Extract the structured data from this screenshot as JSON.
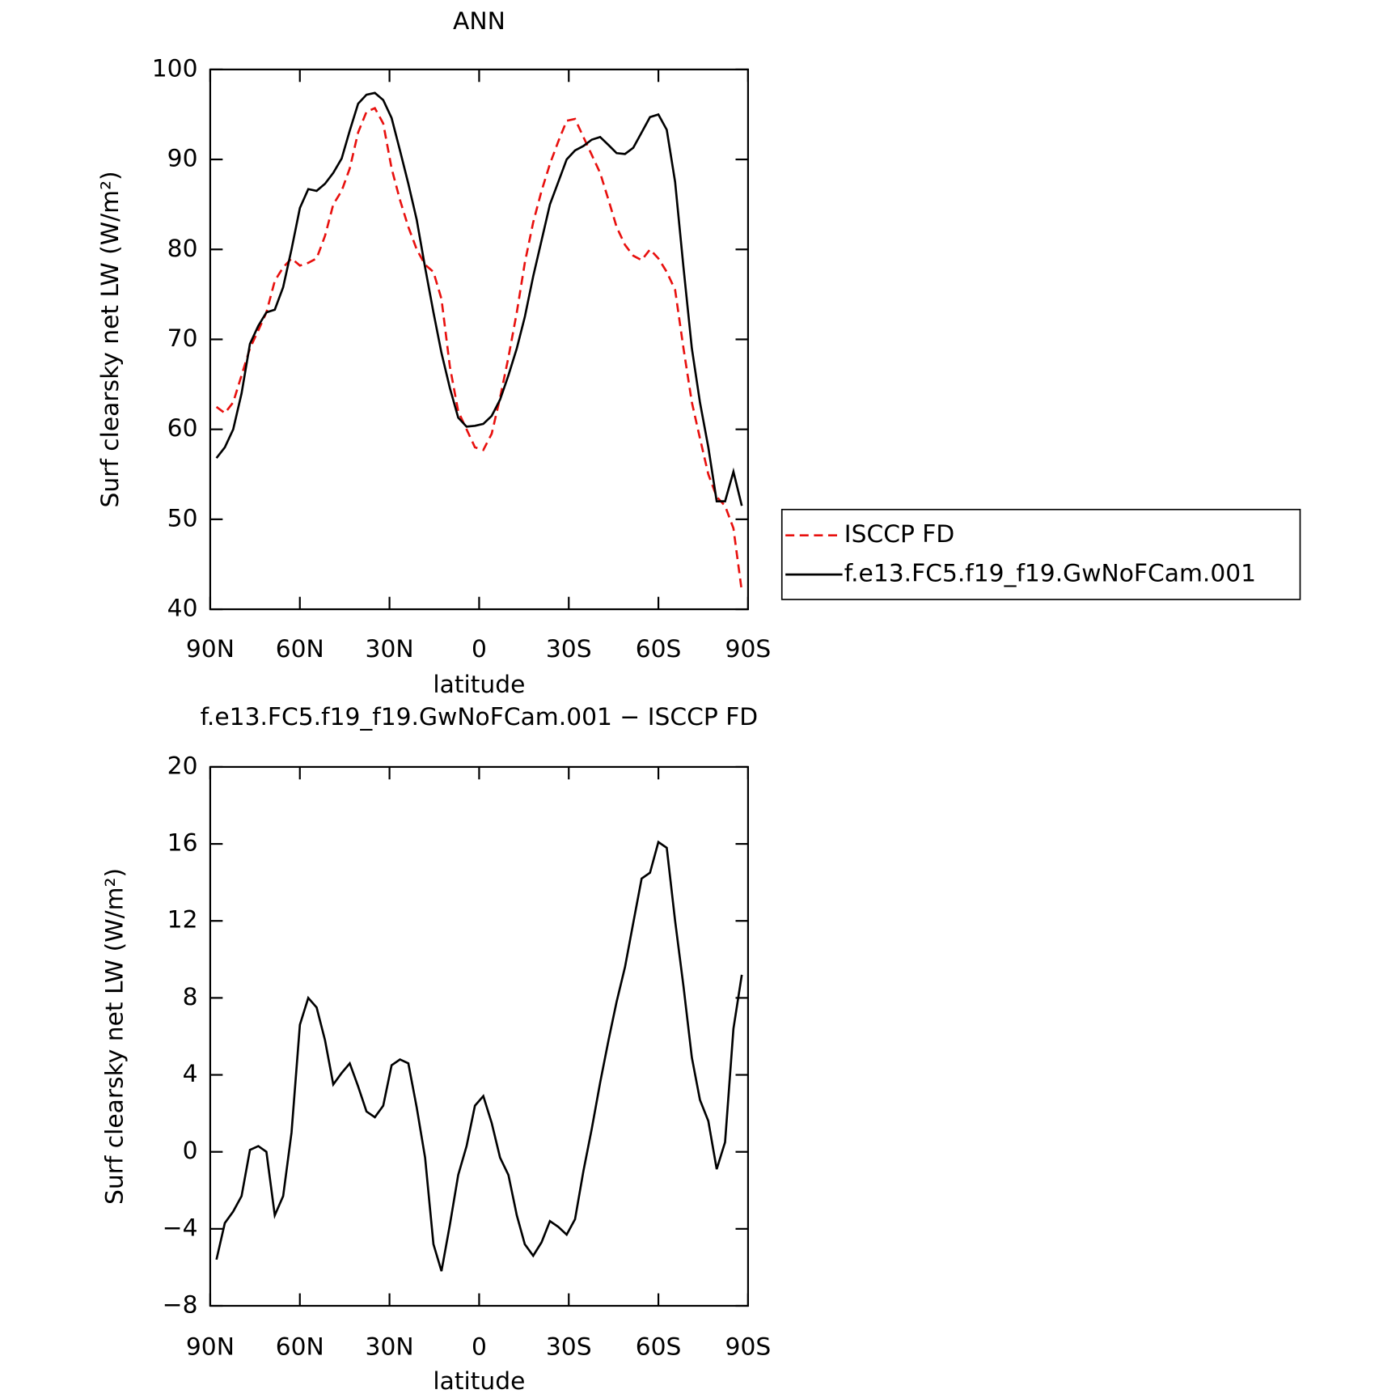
{
  "chart_data": [
    {
      "type": "line",
      "title": "ANN",
      "xlabel": "latitude",
      "ylabel": "Surf clearsky net LW (W/m²)",
      "x": [
        87.9,
        85.1,
        82.3,
        79.5,
        76.7,
        73.9,
        71.2,
        68.4,
        65.6,
        62.8,
        60.0,
        57.2,
        54.4,
        51.6,
        48.8,
        46.0,
        43.3,
        40.5,
        37.7,
        34.9,
        32.1,
        29.3,
        26.5,
        23.7,
        20.9,
        18.1,
        15.3,
        12.6,
        9.8,
        7.0,
        4.2,
        1.4,
        -1.4,
        -4.2,
        -7.0,
        -9.8,
        -12.6,
        -15.3,
        -18.1,
        -20.9,
        -23.7,
        -26.5,
        -29.3,
        -32.1,
        -34.9,
        -37.7,
        -40.5,
        -43.3,
        -46.0,
        -48.8,
        -51.6,
        -54.4,
        -57.2,
        -60.0,
        -62.8,
        -65.6,
        -68.4,
        -71.2,
        -73.9,
        -76.7,
        -79.5,
        -82.3,
        -85.1,
        -87.9
      ],
      "series": [
        {
          "name": "ISCCP FD",
          "color": "#e8100e",
          "dash": true,
          "values": [
            62.5,
            61.8,
            63,
            66,
            69,
            71,
            73,
            76.5,
            78,
            79,
            78.2,
            78.5,
            79,
            81.5,
            85,
            86.5,
            89,
            93,
            95.3,
            95.7,
            94,
            89,
            85.5,
            82.5,
            80,
            78.3,
            77.5,
            74.5,
            67,
            62,
            60,
            58,
            57.7,
            59.5,
            63.5,
            68,
            73,
            78.5,
            83,
            86.5,
            89.5,
            92,
            94.3,
            94.5,
            92.5,
            90.5,
            88.5,
            85.5,
            82.5,
            80.5,
            79.3,
            78.8,
            80,
            79,
            77.5,
            75.5,
            69,
            63,
            59,
            55,
            52.5,
            51.5,
            49,
            42
          ]
        },
        {
          "name": "f.e13.FC5.f19_f19.GwNoFCam.001",
          "color": "#000000",
          "dash": false,
          "values": [
            56.8,
            58,
            60,
            64,
            69.5,
            71.5,
            73,
            73.3,
            75.8,
            80,
            84.6,
            86.7,
            86.5,
            87.3,
            88.5,
            90.1,
            93.2,
            96.2,
            97.2,
            97.4,
            96.6,
            94.6,
            91,
            87.3,
            83.3,
            78,
            73,
            68.5,
            64.6,
            61.3,
            60.3,
            60.4,
            60.6,
            61.5,
            63.3,
            66,
            69,
            72.5,
            77,
            81,
            85,
            87.5,
            90,
            91,
            91.5,
            92.2,
            92.5,
            91.6,
            90.7,
            90.6,
            91.3,
            93,
            94.7,
            95,
            93.3,
            87.5,
            78,
            69,
            63,
            58,
            52,
            52,
            55.3,
            51.5
          ]
        }
      ],
      "xlim": [
        90,
        -90
      ],
      "xticks": [
        {
          "value": 90,
          "label": "90N"
        },
        {
          "value": 60,
          "label": "60N"
        },
        {
          "value": 30,
          "label": "30N"
        },
        0,
        {
          "value": -30,
          "label": "30S"
        },
        {
          "value": -60,
          "label": "60S"
        },
        {
          "value": -90,
          "label": "90S"
        }
      ],
      "ylim": [
        40,
        100
      ],
      "yticks": [
        40,
        50,
        60,
        70,
        80,
        90,
        100
      ],
      "legend": "right"
    },
    {
      "type": "line",
      "title": "f.e13.FC5.f19_f19.GwNoFCam.001 − ISCCP FD",
      "xlabel": "latitude",
      "ylabel": "Surf clearsky net LW (W/m²)",
      "x": [
        87.9,
        85.1,
        82.3,
        79.5,
        76.7,
        73.9,
        71.2,
        68.4,
        65.6,
        62.8,
        60.0,
        57.2,
        54.4,
        51.6,
        48.8,
        46.0,
        43.3,
        40.5,
        37.7,
        34.9,
        32.1,
        29.3,
        26.5,
        23.7,
        20.9,
        18.1,
        15.3,
        12.6,
        9.8,
        7.0,
        4.2,
        1.4,
        -1.4,
        -4.2,
        -7.0,
        -9.8,
        -12.6,
        -15.3,
        -18.1,
        -20.9,
        -23.7,
        -26.5,
        -29.3,
        -32.1,
        -34.9,
        -37.7,
        -40.5,
        -43.3,
        -46.0,
        -48.8,
        -51.6,
        -54.4,
        -57.2,
        -60.0,
        -62.8,
        -65.6,
        -68.4,
        -71.2,
        -73.9,
        -76.7,
        -79.5,
        -82.3,
        -85.1,
        -87.9
      ],
      "series": [
        {
          "color": "#000000",
          "dash": false,
          "values": [
            -5.6,
            -3.7,
            -3.1,
            -2.3,
            0.1,
            0.3,
            0,
            -3.3,
            -2.3,
            1,
            6.6,
            8.0,
            7.5,
            5.8,
            3.5,
            4.1,
            4.6,
            3.4,
            2.1,
            1.8,
            2.4,
            4.5,
            4.8,
            4.6,
            2.3,
            -0.3,
            -4.8,
            -6.2,
            -3.8,
            -1.2,
            0.3,
            2.4,
            2.9,
            1.5,
            -0.3,
            -1.2,
            -3.3,
            -4.8,
            -5.4,
            -4.7,
            -3.6,
            -3.9,
            -4.3,
            -3.5,
            -1.0,
            1.2,
            3.6,
            5.8,
            7.8,
            9.6,
            11.9,
            14.2,
            14.5,
            16.1,
            15.8,
            12.0,
            8.6,
            4.9,
            2.7,
            1.6,
            -0.9,
            0.5,
            6.4,
            9.2
          ]
        }
      ],
      "xlim": [
        90,
        -90
      ],
      "xticks": [
        {
          "value": 90,
          "label": "90N"
        },
        {
          "value": 60,
          "label": "60N"
        },
        {
          "value": 30,
          "label": "30N"
        },
        0,
        {
          "value": -30,
          "label": "30S"
        },
        {
          "value": -60,
          "label": "60S"
        },
        {
          "value": -90,
          "label": "90S"
        }
      ],
      "ylim": [
        -8,
        20
      ],
      "yticks": [
        {
          "value": -8,
          "label": "−8"
        },
        {
          "value": -4,
          "label": "−4"
        },
        0,
        4,
        8,
        12,
        16,
        20
      ]
    }
  ]
}
